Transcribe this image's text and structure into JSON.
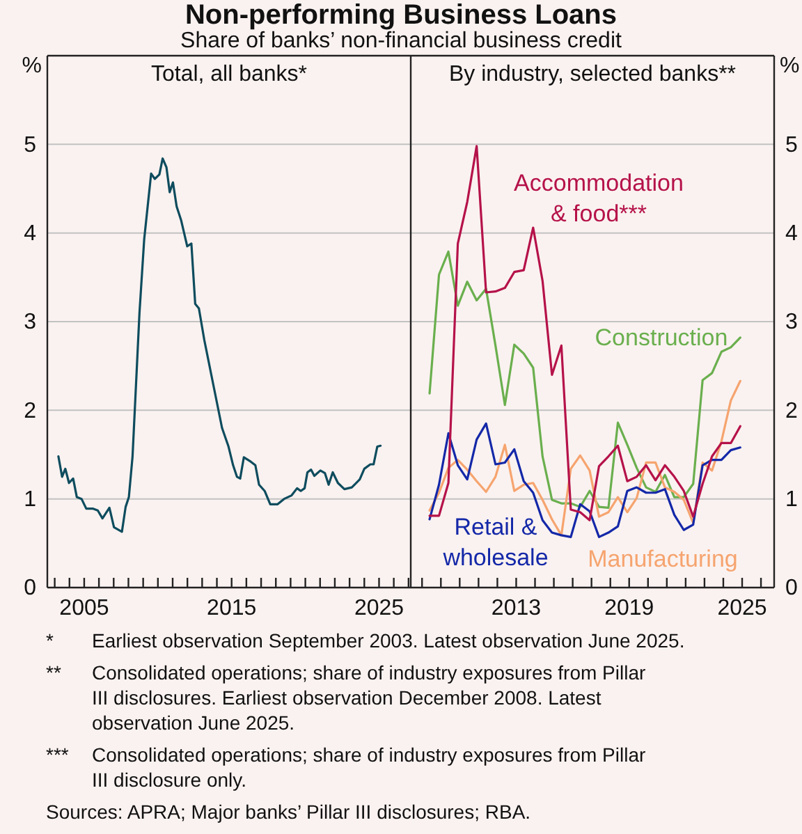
{
  "chart_data": [
    {
      "type": "line",
      "title": "Total, all banks*",
      "ylabel": "%",
      "grid": true,
      "xlim": [
        2002.5,
        2027.15
      ],
      "ylim": [
        0,
        6
      ],
      "yticks": [
        0,
        1,
        2,
        3,
        4,
        5
      ],
      "xticks": [
        {
          "value": 2003,
          "label": null
        },
        {
          "value": 2004,
          "label": null
        },
        2005,
        {
          "value": 2006,
          "label": null
        },
        {
          "value": 2007,
          "label": null
        },
        {
          "value": 2008,
          "label": null
        },
        {
          "value": 2009,
          "label": null
        },
        {
          "value": 2010,
          "label": null
        },
        {
          "value": 2011,
          "label": null
        },
        {
          "value": 2012,
          "label": null
        },
        {
          "value": 2013,
          "label": null
        },
        {
          "value": 2014,
          "label": null
        },
        2015,
        {
          "value": 2016,
          "label": null
        },
        {
          "value": 2017,
          "label": null
        },
        {
          "value": 2018,
          "label": null
        },
        {
          "value": 2019,
          "label": null
        },
        {
          "value": 2020,
          "label": null
        },
        {
          "value": 2021,
          "label": null
        },
        {
          "value": 2022,
          "label": null
        },
        {
          "value": 2023,
          "label": null
        },
        {
          "value": 2024,
          "label": null
        },
        2025,
        {
          "value": 2026,
          "label": null
        },
        {
          "value": 2027,
          "label": null
        }
      ],
      "annotations": [
        "Non-performing Business Loans",
        "Share of banks’ non-financial business credit"
      ],
      "series": [
        {
          "color": "#0e4c5e",
          "x": [
            2003.25,
            2003.5,
            2003.72,
            2003.97,
            2004.25,
            2004.5,
            2004.82,
            2005.14,
            2005.61,
            2005.92,
            2006.24,
            2006.71,
            2007.02,
            2007.56,
            2007.81,
            2008.03,
            2008.28,
            2008.75,
            2009.07,
            2009.54,
            2009.79,
            2010.1,
            2010.32,
            2010.58,
            2010.8,
            2011.02,
            2011.27,
            2011.58,
            2011.99,
            2012.27,
            2012.53,
            2012.78,
            2013.15,
            2013.78,
            2014.35,
            2014.79,
            2015.1,
            2015.36,
            2015.58,
            2015.83,
            2016.3,
            2016.61,
            2016.86,
            2017.24,
            2017.62,
            2018.12,
            2018.56,
            2019.07,
            2019.44,
            2019.69,
            2019.95,
            2020.14,
            2020.39,
            2020.61,
            2021.02,
            2021.33,
            2021.58,
            2021.86,
            2022.21,
            2022.65,
            2023.15,
            2023.69,
            2024.0,
            2024.41,
            2024.63,
            2024.88,
            2025.1
          ],
          "values": [
            1.48,
            1.25,
            1.34,
            1.18,
            1.23,
            1.02,
            1.0,
            0.89,
            0.89,
            0.87,
            0.78,
            0.9,
            0.68,
            0.63,
            0.91,
            1.02,
            1.48,
            3.1,
            3.93,
            4.67,
            4.61,
            4.66,
            4.84,
            4.74,
            4.46,
            4.57,
            4.3,
            4.14,
            3.85,
            3.88,
            3.2,
            3.15,
            2.79,
            2.27,
            1.8,
            1.59,
            1.38,
            1.25,
            1.23,
            1.47,
            1.42,
            1.38,
            1.16,
            1.09,
            0.94,
            0.94,
            1.0,
            1.04,
            1.12,
            1.09,
            1.12,
            1.3,
            1.33,
            1.26,
            1.32,
            1.29,
            1.16,
            1.3,
            1.18,
            1.11,
            1.13,
            1.22,
            1.34,
            1.39,
            1.39,
            1.59,
            1.6
          ]
        }
      ]
    },
    {
      "type": "line",
      "title": "By industry, selected banks**",
      "ylabel": "%",
      "grid": true,
      "xlim": [
        2007.4,
        2026.7
      ],
      "ylim": [
        0,
        6
      ],
      "yticks": [
        0,
        1,
        2,
        3,
        4,
        5
      ],
      "xticks": [
        {
          "value": 2008,
          "label": null
        },
        {
          "value": 2009,
          "label": null
        },
        {
          "value": 2010,
          "label": null
        },
        {
          "value": 2011,
          "label": null
        },
        {
          "value": 2012,
          "label": null
        },
        2013,
        {
          "value": 2014,
          "label": null
        },
        {
          "value": 2015,
          "label": null
        },
        {
          "value": 2016,
          "label": null
        },
        {
          "value": 2017,
          "label": null
        },
        {
          "value": 2018,
          "label": null
        },
        2019,
        {
          "value": 2020,
          "label": null
        },
        {
          "value": 2021,
          "label": null
        },
        {
          "value": 2022,
          "label": null
        },
        {
          "value": 2023,
          "label": null
        },
        {
          "value": 2024,
          "label": null
        },
        2025,
        {
          "value": 2026,
          "label": null
        }
      ],
      "annotations": [
        "* Earliest observation September 2003. Latest observation June 2025.",
        "** Consolidated operations; share of industry exposures from Pillar III disclosures. Earliest observation December 2008. Latest observation June 2025.",
        "*** Consolidated operations; share of industry exposures from Pillar III disclosure only.",
        "Sources: APRA; Major banks’ Pillar III disclosures; RBA."
      ],
      "x": [
        2008.4,
        2008.9,
        2009.4,
        2009.9,
        2010.4,
        2010.9,
        2011.4,
        2011.9,
        2012.4,
        2012.9,
        2013.4,
        2013.9,
        2014.4,
        2014.9,
        2015.4,
        2015.9,
        2016.4,
        2016.9,
        2017.4,
        2017.9,
        2018.4,
        2018.9,
        2019.4,
        2019.9,
        2020.4,
        2020.9,
        2021.4,
        2021.9,
        2022.4,
        2022.9,
        2023.4,
        2023.9,
        2024.4,
        2024.9
      ],
      "series": [
        {
          "name": "Construction",
          "color": "#6aaf4e",
          "values": [
            2.19,
            3.53,
            3.79,
            3.18,
            3.45,
            3.24,
            3.37,
            2.73,
            2.06,
            2.74,
            2.64,
            2.48,
            1.48,
            0.99,
            0.95,
            0.95,
            0.91,
            1.09,
            0.91,
            0.9,
            1.86,
            1.61,
            1.35,
            1.13,
            1.08,
            1.27,
            1.02,
            1.02,
            1.17,
            2.34,
            2.42,
            2.66,
            2.71,
            2.82
          ]
        },
        {
          "name": "Manufacturing",
          "color": "#f6a46f",
          "values": [
            0.87,
            1.07,
            1.35,
            1.44,
            1.33,
            1.2,
            1.08,
            1.25,
            1.61,
            1.09,
            1.16,
            1.18,
            0.99,
            0.77,
            0.59,
            1.34,
            1.49,
            1.32,
            0.8,
            0.85,
            1.02,
            0.85,
            1.01,
            1.41,
            1.41,
            1.13,
            1.08,
            0.99,
            0.73,
            1.41,
            1.32,
            1.65,
            2.11,
            2.33
          ]
        },
        {
          "name": "Retail & wholesale",
          "color": "#1428a8",
          "values": [
            0.77,
            1.16,
            1.74,
            1.38,
            1.22,
            1.67,
            1.85,
            1.39,
            1.41,
            1.56,
            1.2,
            1.07,
            0.76,
            0.62,
            0.59,
            0.57,
            0.94,
            0.86,
            0.57,
            0.62,
            0.69,
            1.09,
            1.13,
            1.07,
            1.07,
            1.11,
            0.82,
            0.65,
            0.71,
            1.38,
            1.44,
            1.44,
            1.55,
            1.58
          ]
        },
        {
          "name": "Accommodation & food***",
          "color": "#b5124a",
          "values": [
            0.81,
            0.81,
            1.18,
            3.88,
            4.35,
            4.98,
            3.33,
            3.34,
            3.38,
            3.56,
            3.58,
            4.06,
            3.46,
            2.4,
            2.73,
            0.88,
            0.85,
            0.76,
            1.37,
            1.48,
            1.6,
            1.2,
            1.25,
            1.38,
            1.21,
            1.38,
            1.25,
            1.09,
            0.8,
            1.17,
            1.48,
            1.63,
            1.63,
            1.82
          ]
        }
      ]
    }
  ]
}
